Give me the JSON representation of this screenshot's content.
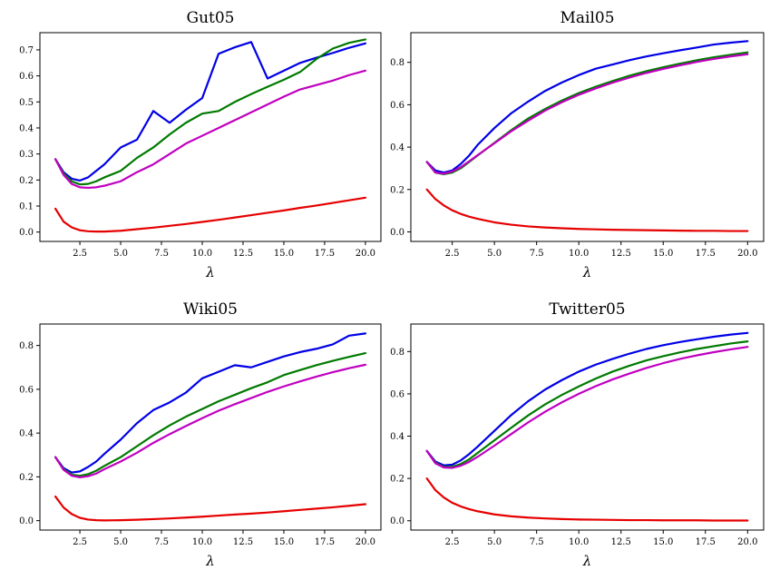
{
  "colors": {
    "blue": "#0000e6",
    "green": "#007a00",
    "magenta": "#c000c0",
    "red": "#e60000"
  },
  "chart_data": [
    {
      "type": "line",
      "title": "Gut05",
      "xlabel": "λ",
      "ylabel": "",
      "xlim": [
        0.05,
        20.95
      ],
      "ylim": [
        -0.036,
        0.766
      ],
      "xticks": [
        2.5,
        5.0,
        7.5,
        10.0,
        12.5,
        15.0,
        17.5,
        20.0
      ],
      "xtick_labels": [
        "2.5",
        "5.0",
        "7.5",
        "10.0",
        "12.5",
        "15.0",
        "17.5",
        "20.0"
      ],
      "yticks": [
        0.0,
        0.1,
        0.2,
        0.3,
        0.4,
        0.5,
        0.6,
        0.7
      ],
      "ytick_labels": [
        "0.0",
        "0.1",
        "0.2",
        "0.3",
        "0.4",
        "0.5",
        "0.6",
        "0.7"
      ],
      "x": [
        1.0,
        1.5,
        2.0,
        2.5,
        3.0,
        3.5,
        4.0,
        5.0,
        6.0,
        7.0,
        8.0,
        9.0,
        10.0,
        11.0,
        12.0,
        13.0,
        14.0,
        15.0,
        16.0,
        17.0,
        18.0,
        19.0,
        20.0
      ],
      "series": [
        {
          "color": "blue",
          "values": [
            0.28,
            0.23,
            0.205,
            0.198,
            0.21,
            0.235,
            0.26,
            0.325,
            0.355,
            0.465,
            0.42,
            0.47,
            0.515,
            0.685,
            0.71,
            0.73,
            0.59,
            0.62,
            0.65,
            0.67,
            0.688,
            0.708,
            0.725
          ]
        },
        {
          "color": "green",
          "values": [
            0.28,
            0.225,
            0.195,
            0.183,
            0.185,
            0.195,
            0.21,
            0.235,
            0.285,
            0.325,
            0.375,
            0.42,
            0.455,
            0.465,
            0.5,
            0.53,
            0.558,
            0.585,
            0.615,
            0.665,
            0.705,
            0.727,
            0.74
          ]
        },
        {
          "color": "magenta",
          "values": [
            0.28,
            0.22,
            0.185,
            0.172,
            0.17,
            0.172,
            0.178,
            0.195,
            0.23,
            0.26,
            0.3,
            0.34,
            0.37,
            0.4,
            0.43,
            0.46,
            0.49,
            0.52,
            0.548,
            0.565,
            0.582,
            0.603,
            0.62
          ]
        },
        {
          "color": "red",
          "values": [
            0.09,
            0.04,
            0.018,
            0.007,
            0.003,
            0.002,
            0.002,
            0.005,
            0.011,
            0.017,
            0.024,
            0.031,
            0.039,
            0.047,
            0.056,
            0.065,
            0.074,
            0.083,
            0.093,
            0.102,
            0.112,
            0.122,
            0.132
          ]
        }
      ]
    },
    {
      "type": "line",
      "title": "Mail05",
      "xlabel": "λ",
      "ylabel": "",
      "xlim": [
        0.05,
        20.95
      ],
      "ylim": [
        -0.045,
        0.94
      ],
      "xticks": [
        2.5,
        5.0,
        7.5,
        10.0,
        12.5,
        15.0,
        17.5,
        20.0
      ],
      "xtick_labels": [
        "2.5",
        "5.0",
        "7.5",
        "10.0",
        "12.5",
        "15.0",
        "17.5",
        "20.0"
      ],
      "yticks": [
        0.0,
        0.2,
        0.4,
        0.6,
        0.8
      ],
      "ytick_labels": [
        "0.0",
        "0.2",
        "0.4",
        "0.6",
        "0.8"
      ],
      "x": [
        1.0,
        1.5,
        2.0,
        2.5,
        3.0,
        3.5,
        4.0,
        5.0,
        6.0,
        7.0,
        8.0,
        9.0,
        10.0,
        11.0,
        12.0,
        13.0,
        14.0,
        15.0,
        16.0,
        17.0,
        18.0,
        19.0,
        20.0
      ],
      "series": [
        {
          "color": "blue",
          "values": [
            0.33,
            0.29,
            0.28,
            0.29,
            0.32,
            0.36,
            0.41,
            0.49,
            0.56,
            0.615,
            0.665,
            0.705,
            0.74,
            0.77,
            0.79,
            0.81,
            0.828,
            0.843,
            0.857,
            0.87,
            0.884,
            0.893,
            0.9
          ]
        },
        {
          "color": "green",
          "values": [
            0.33,
            0.28,
            0.272,
            0.28,
            0.3,
            0.33,
            0.36,
            0.42,
            0.48,
            0.535,
            0.58,
            0.62,
            0.655,
            0.685,
            0.712,
            0.737,
            0.758,
            0.777,
            0.794,
            0.81,
            0.824,
            0.836,
            0.847
          ]
        },
        {
          "color": "magenta",
          "values": [
            0.33,
            0.28,
            0.275,
            0.285,
            0.305,
            0.333,
            0.362,
            0.418,
            0.475,
            0.525,
            0.572,
            0.612,
            0.647,
            0.677,
            0.704,
            0.728,
            0.75,
            0.769,
            0.786,
            0.802,
            0.816,
            0.828,
            0.838
          ]
        },
        {
          "color": "red",
          "values": [
            0.2,
            0.155,
            0.125,
            0.102,
            0.085,
            0.072,
            0.062,
            0.045,
            0.034,
            0.026,
            0.021,
            0.017,
            0.014,
            0.012,
            0.01,
            0.009,
            0.008,
            0.007,
            0.006,
            0.005,
            0.005,
            0.004,
            0.004
          ]
        }
      ]
    },
    {
      "type": "line",
      "title": "Wiki05",
      "xlabel": "λ",
      "ylabel": "",
      "xlim": [
        0.05,
        20.95
      ],
      "ylim": [
        -0.043,
        0.898
      ],
      "xticks": [
        2.5,
        5.0,
        7.5,
        10.0,
        12.5,
        15.0,
        17.5,
        20.0
      ],
      "xtick_labels": [
        "2.5",
        "5.0",
        "7.5",
        "10.0",
        "12.5",
        "15.0",
        "17.5",
        "20.0"
      ],
      "yticks": [
        0.0,
        0.2,
        0.4,
        0.6,
        0.8
      ],
      "ytick_labels": [
        "0.0",
        "0.2",
        "0.4",
        "0.6",
        "0.8"
      ],
      "x": [
        1.0,
        1.5,
        2.0,
        2.5,
        3.0,
        3.5,
        4.0,
        5.0,
        6.0,
        7.0,
        8.0,
        9.0,
        10.0,
        11.0,
        12.0,
        13.0,
        14.0,
        15.0,
        16.0,
        17.0,
        18.0,
        19.0,
        20.0
      ],
      "series": [
        {
          "color": "blue",
          "values": [
            0.29,
            0.24,
            0.22,
            0.225,
            0.245,
            0.27,
            0.305,
            0.37,
            0.445,
            0.505,
            0.54,
            0.585,
            0.65,
            0.68,
            0.71,
            0.7,
            0.725,
            0.75,
            0.77,
            0.785,
            0.805,
            0.845,
            0.855
          ]
        },
        {
          "color": "green",
          "values": [
            0.29,
            0.235,
            0.21,
            0.205,
            0.212,
            0.228,
            0.25,
            0.29,
            0.34,
            0.39,
            0.435,
            0.475,
            0.51,
            0.545,
            0.575,
            0.605,
            0.632,
            0.665,
            0.688,
            0.71,
            0.73,
            0.748,
            0.765
          ]
        },
        {
          "color": "magenta",
          "values": [
            0.29,
            0.232,
            0.205,
            0.198,
            0.203,
            0.215,
            0.235,
            0.27,
            0.31,
            0.355,
            0.395,
            0.432,
            0.468,
            0.502,
            0.532,
            0.56,
            0.588,
            0.613,
            0.636,
            0.658,
            0.678,
            0.696,
            0.712
          ]
        },
        {
          "color": "red",
          "values": [
            0.11,
            0.06,
            0.03,
            0.013,
            0.005,
            0.002,
            0.001,
            0.002,
            0.004,
            0.007,
            0.01,
            0.014,
            0.018,
            0.023,
            0.028,
            0.032,
            0.037,
            0.043,
            0.049,
            0.055,
            0.061,
            0.068,
            0.075
          ]
        }
      ]
    },
    {
      "type": "line",
      "title": "Twitter05",
      "xlabel": "λ",
      "ylabel": "",
      "xlim": [
        0.05,
        20.95
      ],
      "ylim": [
        -0.044,
        0.93
      ],
      "xticks": [
        2.5,
        5.0,
        7.5,
        10.0,
        12.5,
        15.0,
        17.5,
        20.0
      ],
      "xtick_labels": [
        "2.5",
        "5.0",
        "7.5",
        "10.0",
        "12.5",
        "15.0",
        "17.5",
        "20.0"
      ],
      "yticks": [
        0.0,
        0.2,
        0.4,
        0.6,
        0.8
      ],
      "ytick_labels": [
        "0.0",
        "0.2",
        "0.4",
        "0.6",
        "0.8"
      ],
      "x": [
        1.0,
        1.5,
        2.0,
        2.5,
        3.0,
        3.5,
        4.0,
        5.0,
        6.0,
        7.0,
        8.0,
        9.0,
        10.0,
        11.0,
        12.0,
        13.0,
        14.0,
        15.0,
        16.0,
        17.0,
        18.0,
        19.0,
        20.0
      ],
      "series": [
        {
          "color": "blue",
          "values": [
            0.33,
            0.28,
            0.262,
            0.265,
            0.285,
            0.315,
            0.35,
            0.425,
            0.5,
            0.565,
            0.62,
            0.665,
            0.705,
            0.738,
            0.765,
            0.79,
            0.812,
            0.83,
            0.845,
            0.858,
            0.87,
            0.88,
            0.888
          ]
        },
        {
          "color": "green",
          "values": [
            0.33,
            0.275,
            0.255,
            0.255,
            0.268,
            0.29,
            0.32,
            0.38,
            0.44,
            0.498,
            0.55,
            0.595,
            0.635,
            0.672,
            0.705,
            0.733,
            0.758,
            0.778,
            0.796,
            0.812,
            0.825,
            0.838,
            0.848
          ]
        },
        {
          "color": "magenta",
          "values": [
            0.33,
            0.272,
            0.252,
            0.25,
            0.26,
            0.278,
            0.302,
            0.355,
            0.41,
            0.465,
            0.515,
            0.56,
            0.6,
            0.636,
            0.668,
            0.696,
            0.722,
            0.745,
            0.765,
            0.782,
            0.797,
            0.81,
            0.822
          ]
        },
        {
          "color": "red",
          "values": [
            0.2,
            0.145,
            0.11,
            0.085,
            0.068,
            0.055,
            0.045,
            0.03,
            0.021,
            0.015,
            0.011,
            0.008,
            0.006,
            0.005,
            0.004,
            0.003,
            0.003,
            0.002,
            0.002,
            0.002,
            0.001,
            0.001,
            0.001
          ]
        }
      ]
    }
  ]
}
